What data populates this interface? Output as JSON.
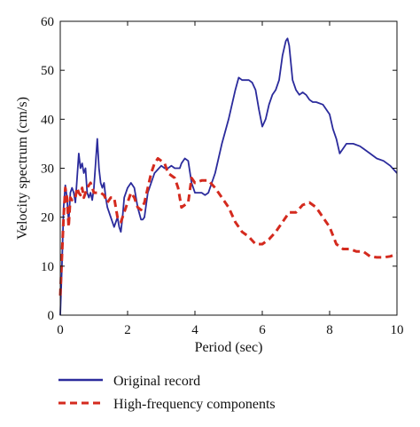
{
  "chart_data": {
    "type": "line",
    "title": "",
    "xlabel": "Period (sec)",
    "ylabel": "Velocity spectrum (cm/s)",
    "xlim": [
      0,
      10
    ],
    "ylim": [
      0,
      60
    ],
    "xticks": [
      0,
      2,
      4,
      6,
      8,
      10
    ],
    "yticks": [
      0,
      10,
      20,
      30,
      40,
      50,
      60
    ],
    "grid": false,
    "legend_placement": "bottom, below plot",
    "series": [
      {
        "name": "Original record",
        "color": "#2b2b9c",
        "style": "solid",
        "x": [
          0,
          0.05,
          0.1,
          0.15,
          0.2,
          0.25,
          0.3,
          0.35,
          0.4,
          0.45,
          0.5,
          0.55,
          0.6,
          0.65,
          0.7,
          0.75,
          0.8,
          0.85,
          0.9,
          0.95,
          1.0,
          1.05,
          1.1,
          1.15,
          1.2,
          1.25,
          1.3,
          1.35,
          1.4,
          1.5,
          1.6,
          1.7,
          1.75,
          1.8,
          1.85,
          1.9,
          2.0,
          2.1,
          2.2,
          2.3,
          2.4,
          2.45,
          2.5,
          2.6,
          2.7,
          2.8,
          3.0,
          3.1,
          3.2,
          3.3,
          3.4,
          3.5,
          3.55,
          3.6,
          3.7,
          3.8,
          3.9,
          4.0,
          4.1,
          4.2,
          4.3,
          4.4,
          4.5,
          4.6,
          4.8,
          5.0,
          5.2,
          5.3,
          5.4,
          5.5,
          5.6,
          5.7,
          5.8,
          5.9,
          6.0,
          6.1,
          6.2,
          6.3,
          6.4,
          6.5,
          6.6,
          6.7,
          6.75,
          6.8,
          6.9,
          7.0,
          7.1,
          7.2,
          7.3,
          7.4,
          7.5,
          7.6,
          7.8,
          8.0,
          8.1,
          8.2,
          8.3,
          8.5,
          8.7,
          8.9,
          9.0,
          9.2,
          9.4,
          9.6,
          9.8,
          10.0
        ],
        "y": [
          0,
          10,
          22,
          26.5,
          24,
          19,
          25,
          26,
          25,
          23,
          28,
          33,
          30,
          31,
          29,
          30,
          25,
          24,
          25,
          23.5,
          26,
          31,
          36,
          30,
          27,
          26,
          27,
          24,
          22,
          20,
          18,
          20,
          18,
          17,
          20,
          24,
          26,
          27,
          26,
          22,
          19.5,
          19.5,
          20,
          25,
          27,
          29,
          30.5,
          30,
          30,
          30.5,
          30,
          30,
          30,
          31,
          32,
          31.5,
          27,
          25,
          25,
          25,
          24.5,
          25,
          27,
          29,
          35,
          40,
          46,
          48.5,
          48,
          48,
          48,
          47.5,
          46,
          42,
          38.5,
          40,
          43,
          45,
          46,
          48,
          53,
          56,
          56.5,
          55,
          48,
          46,
          45,
          45.5,
          45,
          44,
          43.5,
          43.5,
          43,
          41,
          38,
          36,
          33,
          35,
          35,
          34.5,
          34,
          33,
          32,
          31.5,
          30.5,
          29
        ]
      },
      {
        "name": "High-frequency components",
        "color": "#d42a1e",
        "style": "dashed",
        "x": [
          0,
          0.05,
          0.1,
          0.15,
          0.2,
          0.25,
          0.3,
          0.35,
          0.4,
          0.45,
          0.5,
          0.55,
          0.6,
          0.65,
          0.7,
          0.8,
          0.9,
          1.0,
          1.1,
          1.2,
          1.3,
          1.4,
          1.5,
          1.6,
          1.7,
          1.8,
          1.9,
          2.0,
          2.1,
          2.2,
          2.3,
          2.4,
          2.5,
          2.6,
          2.7,
          2.8,
          2.9,
          3.0,
          3.1,
          3.2,
          3.4,
          3.5,
          3.6,
          3.7,
          3.8,
          3.9,
          4.0,
          4.2,
          4.4,
          4.6,
          4.8,
          5.0,
          5.2,
          5.4,
          5.6,
          5.8,
          6.0,
          6.2,
          6.4,
          6.6,
          6.8,
          7.0,
          7.2,
          7.4,
          7.6,
          7.8,
          8.0,
          8.2,
          8.4,
          8.6,
          8.8,
          9.0,
          9.2,
          9.4,
          9.6,
          9.8,
          10.0
        ],
        "y": [
          4,
          12,
          20,
          26,
          24,
          18,
          24,
          23.5,
          24,
          24,
          26,
          25,
          24.5,
          26,
          24,
          26,
          27,
          25,
          25,
          25,
          24.5,
          23,
          24,
          24,
          20,
          19,
          21,
          23,
          25,
          24,
          22,
          21.5,
          23,
          26,
          29,
          31,
          32,
          31.5,
          31,
          29,
          28,
          26,
          22,
          22.5,
          23,
          28,
          27,
          27.5,
          27.5,
          26,
          24,
          22,
          19,
          17,
          16,
          14.5,
          14.5,
          15.5,
          17,
          19,
          21,
          21,
          22.5,
          23,
          22,
          20,
          18,
          14.5,
          13.5,
          13.5,
          13,
          13,
          12,
          11.8,
          11.8,
          12,
          12.5
        ]
      }
    ]
  }
}
